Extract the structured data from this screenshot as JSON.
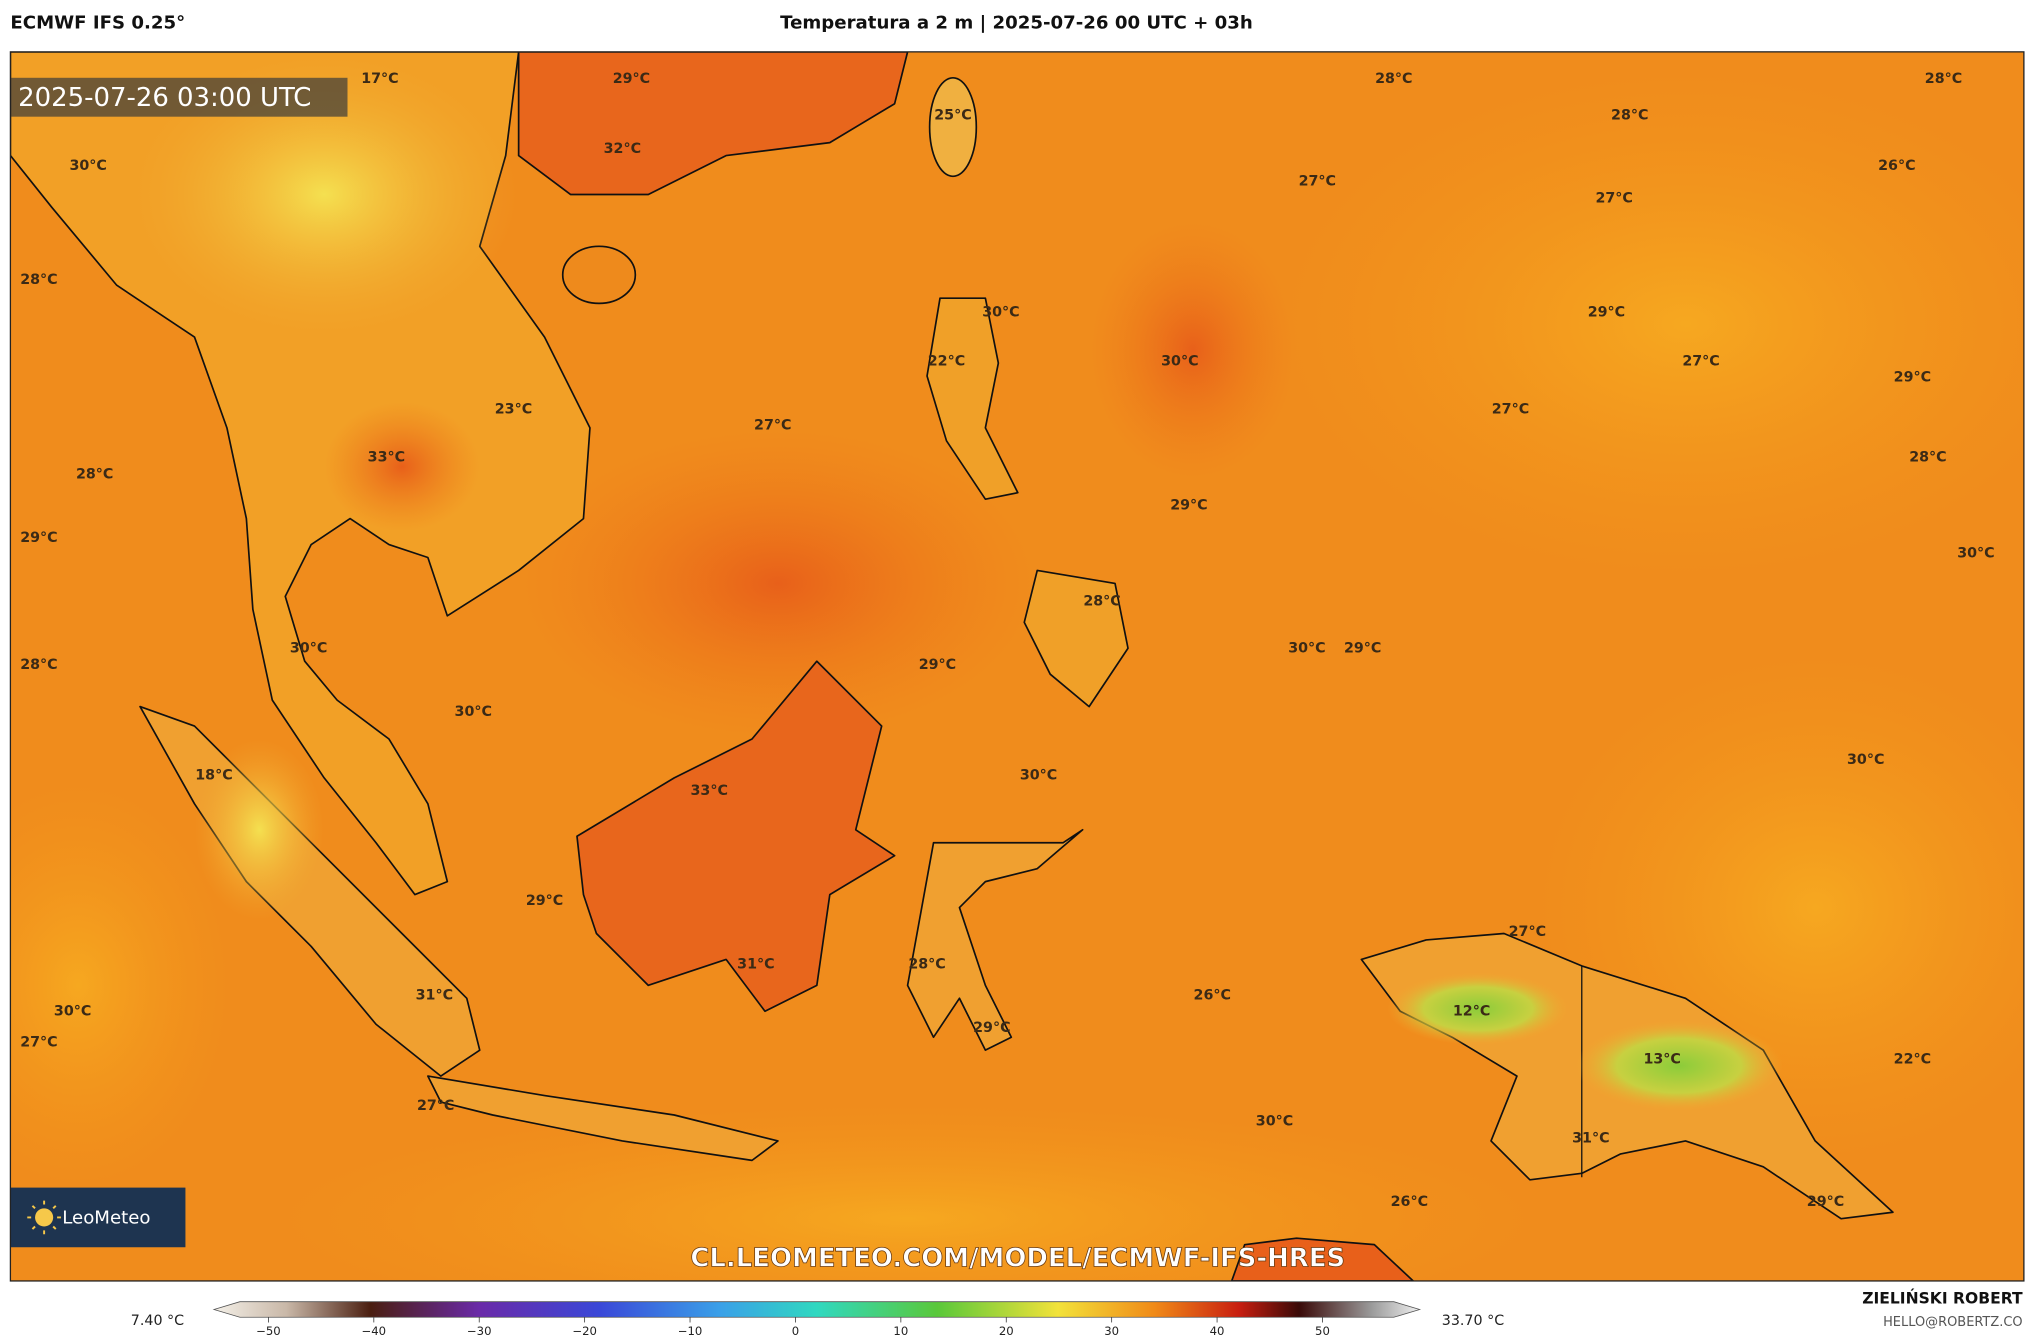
{
  "header": {
    "model": "ECMWF IFS 0.25°",
    "title": "Temperatura a 2 m | 2025-07-26 00 UTC + 03h"
  },
  "map": {
    "timestamp": "2025-07-26 03:00 UTC",
    "labels": [
      "17°C",
      "29°C",
      "28°C",
      "28°C",
      "25°C",
      "28°C",
      "32°C",
      "30°C",
      "26°C",
      "27°C",
      "27°C",
      "28°C",
      "30°C",
      "29°C",
      "30°C",
      "27°C",
      "22°C",
      "29°C",
      "23°C",
      "27°C",
      "27°C",
      "28°C",
      "33°C",
      "28°C",
      "29°C",
      "29°C",
      "30°C",
      "28°C",
      "30°C",
      "30°C",
      "29°C",
      "28°C",
      "29°C",
      "30°C",
      "30°C",
      "18°C",
      "30°C",
      "33°C",
      "29°C",
      "27°C",
      "28°C",
      "31°C",
      "31°C",
      "26°C",
      "12°C",
      "30°C",
      "29°C",
      "27°C",
      "13°C",
      "22°C",
      "27°C",
      "30°C",
      "31°C",
      "26°C",
      "29°C"
    ],
    "logo": "LeoMeteo",
    "url": "CL.LEOMETEO.COM/MODEL/ECMWF-IFS-HRES"
  },
  "legend": {
    "min": "7.40 °C",
    "max": "33.70 °C",
    "ticks": [
      "−50",
      "−40",
      "−30",
      "−20",
      "−10",
      "0",
      "10",
      "20",
      "30",
      "40",
      "50"
    ]
  },
  "footer": {
    "author": "ZIELIŃSKI ROBERT",
    "email": "HELLO@ROBERTZ.CO"
  }
}
